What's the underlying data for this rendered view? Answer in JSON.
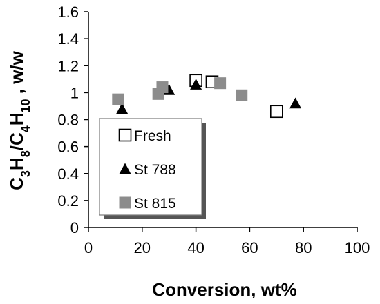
{
  "chart_data": {
    "type": "scatter",
    "xlabel": "Conversion, wt%",
    "ylabel": {
      "parts": [
        {
          "text": "C",
          "sub": false
        },
        {
          "text": "3",
          "sub": true
        },
        {
          "text": "H",
          "sub": false
        },
        {
          "text": "8",
          "sub": true
        },
        {
          "text": "/C",
          "sub": false
        },
        {
          "text": "4",
          "sub": true
        },
        {
          "text": "H",
          "sub": false
        },
        {
          "text": "10",
          "sub": true
        },
        {
          "text": " , w/w",
          "sub": false
        }
      ]
    },
    "xlim": [
      0,
      100
    ],
    "ylim": [
      0,
      1.6
    ],
    "xticks": [
      "0",
      "20",
      "40",
      "60",
      "80",
      "100"
    ],
    "yticks": [
      "0",
      "0.2",
      "0.4",
      "0.6",
      "0.8",
      "1",
      "1.2",
      "1.4",
      "1.6"
    ],
    "grid": false,
    "legend_position": "bottom-left",
    "series": [
      {
        "name": "Fresh",
        "marker": "square-open",
        "color": "#000000",
        "points": [
          [
            40,
            1.09
          ],
          [
            46,
            1.08
          ],
          [
            70,
            0.86
          ]
        ]
      },
      {
        "name": "St 788",
        "marker": "triangle",
        "color": "#000000",
        "points": [
          [
            12.5,
            0.88
          ],
          [
            30,
            1.02
          ],
          [
            40,
            1.06
          ],
          [
            77,
            0.92
          ]
        ]
      },
      {
        "name": "St 815",
        "marker": "square-filled",
        "color": "#8c8c8c",
        "points": [
          [
            11,
            0.95
          ],
          [
            26,
            0.99
          ],
          [
            27.5,
            1.04
          ],
          [
            49,
            1.07
          ],
          [
            57,
            0.98
          ]
        ]
      }
    ]
  }
}
